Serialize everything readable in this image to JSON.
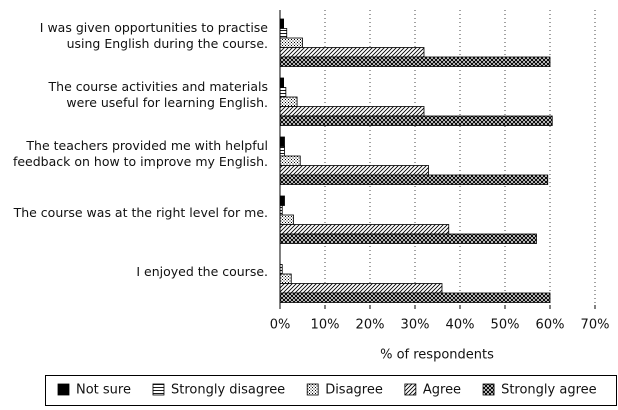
{
  "chart_data": {
    "type": "barh",
    "categories": [
      "I was given opportunities to practise using English during the course.",
      "The course activities and materials were useful for learning English.",
      "The teachers provided me with helpful feedback on how to improve my English.",
      "The course was at the right level for me.",
      "I enjoyed the course."
    ],
    "series": [
      {
        "name": "Not sure",
        "color": "#000000",
        "pattern": "solid",
        "values": [
          0.8,
          0.8,
          1,
          1,
          0
        ]
      },
      {
        "name": "Strongly disagree",
        "color": "#000000",
        "pattern": "horizontal",
        "values": [
          1.5,
          1.3,
          1,
          0.5,
          0.5
        ]
      },
      {
        "name": "Disagree",
        "color": "#000000",
        "pattern": "dots",
        "values": [
          5,
          3.8,
          4.5,
          3,
          2.5
        ]
      },
      {
        "name": "Agree",
        "color": "#000000",
        "pattern": "diagonal",
        "values": [
          32,
          32,
          33,
          37.5,
          36
        ]
      },
      {
        "name": "Strongly agree",
        "color": "#000000",
        "pattern": "crosshatch",
        "values": [
          60,
          60.5,
          59.5,
          57,
          60
        ]
      }
    ],
    "xlabel": "% of respondents",
    "xlim": [
      0,
      70
    ],
    "xticks": [
      {
        "value": 0,
        "label": "0%"
      },
      {
        "value": 10,
        "label": "10%"
      },
      {
        "value": 20,
        "label": "20%"
      },
      {
        "value": 30,
        "label": "30%"
      },
      {
        "value": 40,
        "label": "40%"
      },
      {
        "value": 50,
        "label": "50%"
      },
      {
        "value": 60,
        "label": "60%"
      },
      {
        "value": 70,
        "label": "70%"
      }
    ],
    "grid": true,
    "legend": "bottom"
  }
}
